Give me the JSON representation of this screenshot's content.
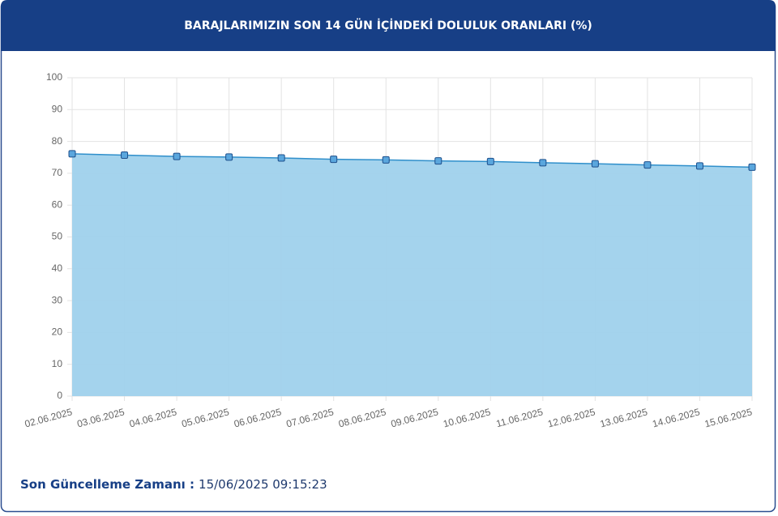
{
  "chart_data": {
    "type": "area",
    "title": "BARAJLARIMIZIN SON 14 GÜN İÇİNDEKİ DOLULUK ORANLARI (%)",
    "categories": [
      "02.06.2025",
      "03.06.2025",
      "04.06.2025",
      "05.06.2025",
      "06.06.2025",
      "07.06.2025",
      "08.06.2025",
      "09.06.2025",
      "10.06.2025",
      "11.06.2025",
      "12.06.2025",
      "13.06.2025",
      "14.06.2025",
      "15.06.2025"
    ],
    "values": [
      76.1,
      75.7,
      75.3,
      75.1,
      74.8,
      74.4,
      74.2,
      73.9,
      73.7,
      73.3,
      73.0,
      72.6,
      72.3,
      71.9
    ],
    "color": "#2f8fcb",
    "fill": "#9fd1ec",
    "ylim": [
      0,
      100
    ],
    "yticks": [
      0,
      10,
      20,
      30,
      40,
      50,
      60,
      70,
      80,
      90,
      100
    ],
    "grid": true
  },
  "last_update": {
    "label": "Son Güncelleme Zamanı :",
    "value": "15/06/2025 09:15:23"
  }
}
